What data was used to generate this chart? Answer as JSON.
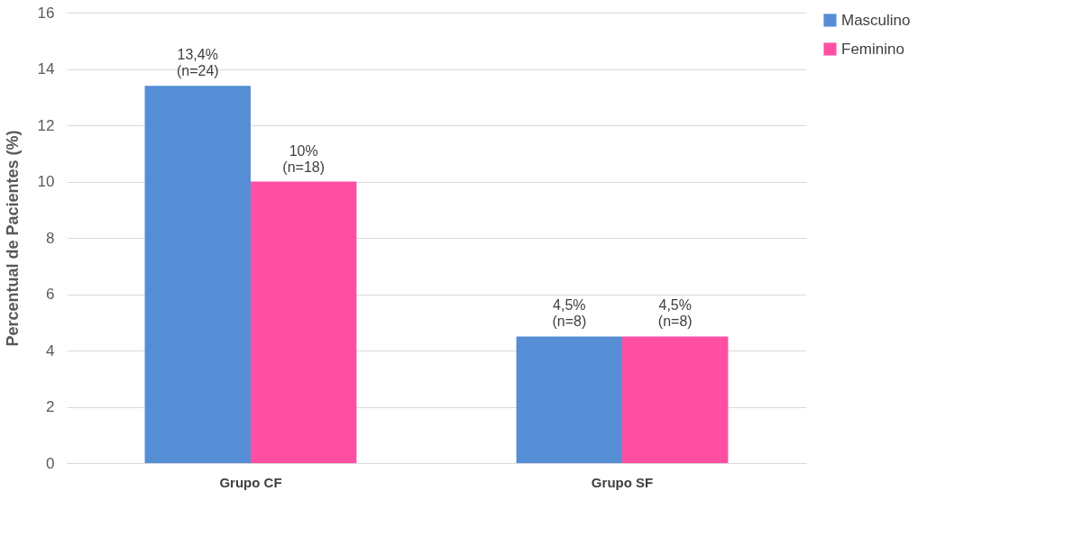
{
  "chart_data": {
    "type": "bar",
    "ylabel": "Percentual de Pacientes (%)",
    "categories": [
      "Grupo CF",
      "Grupo SF"
    ],
    "series": [
      {
        "name": "Masculino",
        "color": "#558ed5",
        "values": [
          13.4,
          4.5
        ],
        "value_labels": [
          "13,4%\n(n=24)",
          "4,5%\n(n=8)"
        ]
      },
      {
        "name": "Feminino",
        "color": "#ff4fa3",
        "values": [
          10,
          4.5
        ],
        "value_labels": [
          "10%\n(n=18)",
          "4,5%\n(n=8)"
        ]
      }
    ],
    "ylim": [
      0,
      16
    ],
    "yticks": [
      0,
      2,
      4,
      6,
      8,
      10,
      12,
      14,
      16
    ],
    "grid": "y",
    "legend": "right"
  }
}
